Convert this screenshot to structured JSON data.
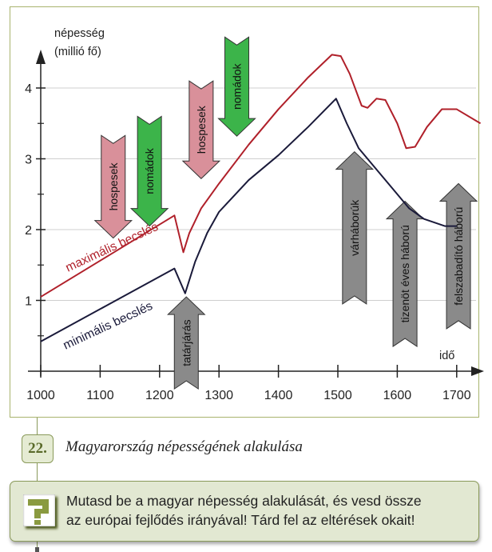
{
  "chart_data": {
    "type": "line",
    "ylabel_line1": "népesség",
    "ylabel_line2": "(millió fő)",
    "xlabel": "idő",
    "xlim": [
      1000,
      1740
    ],
    "ylim": [
      0,
      4.9
    ],
    "x_ticks": [
      1000,
      1100,
      1200,
      1300,
      1400,
      1500,
      1600,
      1700
    ],
    "y_ticks": [
      1,
      2,
      3,
      4
    ],
    "grid": true,
    "series": [
      {
        "name": "maximális becslés",
        "color": "#b0202a",
        "points": [
          [
            1000,
            1.05
          ],
          [
            1225,
            2.2
          ],
          [
            1240,
            1.68
          ],
          [
            1250,
            1.95
          ],
          [
            1270,
            2.3
          ],
          [
            1300,
            2.65
          ],
          [
            1350,
            3.2
          ],
          [
            1400,
            3.7
          ],
          [
            1450,
            4.15
          ],
          [
            1490,
            4.47
          ],
          [
            1505,
            4.45
          ],
          [
            1520,
            4.2
          ],
          [
            1540,
            3.75
          ],
          [
            1550,
            3.72
          ],
          [
            1565,
            3.85
          ],
          [
            1580,
            3.83
          ],
          [
            1600,
            3.5
          ],
          [
            1615,
            3.15
          ],
          [
            1630,
            3.17
          ],
          [
            1650,
            3.45
          ],
          [
            1675,
            3.7
          ],
          [
            1700,
            3.7
          ],
          [
            1740,
            3.5
          ]
        ]
      },
      {
        "name": "minimális becslés",
        "color": "#1a1a3a",
        "points": [
          [
            1000,
            0.42
          ],
          [
            1225,
            1.45
          ],
          [
            1243,
            1.1
          ],
          [
            1260,
            1.55
          ],
          [
            1280,
            1.95
          ],
          [
            1300,
            2.25
          ],
          [
            1350,
            2.7
          ],
          [
            1400,
            3.05
          ],
          [
            1450,
            3.45
          ],
          [
            1497,
            3.85
          ],
          [
            1515,
            3.5
          ],
          [
            1535,
            3.15
          ],
          [
            1560,
            2.9
          ],
          [
            1590,
            2.6
          ],
          [
            1620,
            2.3
          ],
          [
            1645,
            2.15
          ],
          [
            1680,
            2.05
          ],
          [
            1700,
            2.05
          ]
        ]
      }
    ],
    "annotations": [
      {
        "label": "hospesek",
        "direction": "down",
        "x": 1122,
        "from": 3.33,
        "to": 1.88,
        "color": "#d9909a"
      },
      {
        "label": "nomádok",
        "direction": "down",
        "x": 1183,
        "from": 3.6,
        "to": 2.05,
        "color": "#3cb44a"
      },
      {
        "label": "hospesek",
        "direction": "down",
        "x": 1270,
        "from": 4.1,
        "to": 2.72,
        "color": "#d9909a"
      },
      {
        "label": "nomádok",
        "direction": "down",
        "x": 1330,
        "from": 4.72,
        "to": 3.32,
        "color": "#3cb44a"
      },
      {
        "label": "tatárjárás",
        "direction": "up",
        "x": 1245,
        "from": -0.25,
        "to": 1.05,
        "color": "#8a8a8a"
      },
      {
        "label": "várháborúk",
        "direction": "up",
        "x": 1528,
        "from": 0.95,
        "to": 3.1,
        "color": "#8a8a8a"
      },
      {
        "label": "tizenöt éves háború",
        "direction": "up",
        "x": 1613,
        "from": 0.35,
        "to": 2.4,
        "color": "#8a8a8a"
      },
      {
        "label": "felszabadító háború",
        "direction": "up",
        "x": 1703,
        "from": 0.6,
        "to": 2.65,
        "color": "#8a8a8a"
      }
    ]
  },
  "figure": {
    "number": "22.",
    "caption": "Magyarország népességének alakulása"
  },
  "task": {
    "icon": "question-mark-icon",
    "line1": "Mutasd be a magyar népesség alakulását, és vesd össze",
    "line2": "az európai fejlődés irányával! Tárd fel az eltérések okait!"
  },
  "colors": {
    "frame": "#a8b46e",
    "task_bg": "#e2e8d2",
    "accent": "#8a9a5a"
  }
}
